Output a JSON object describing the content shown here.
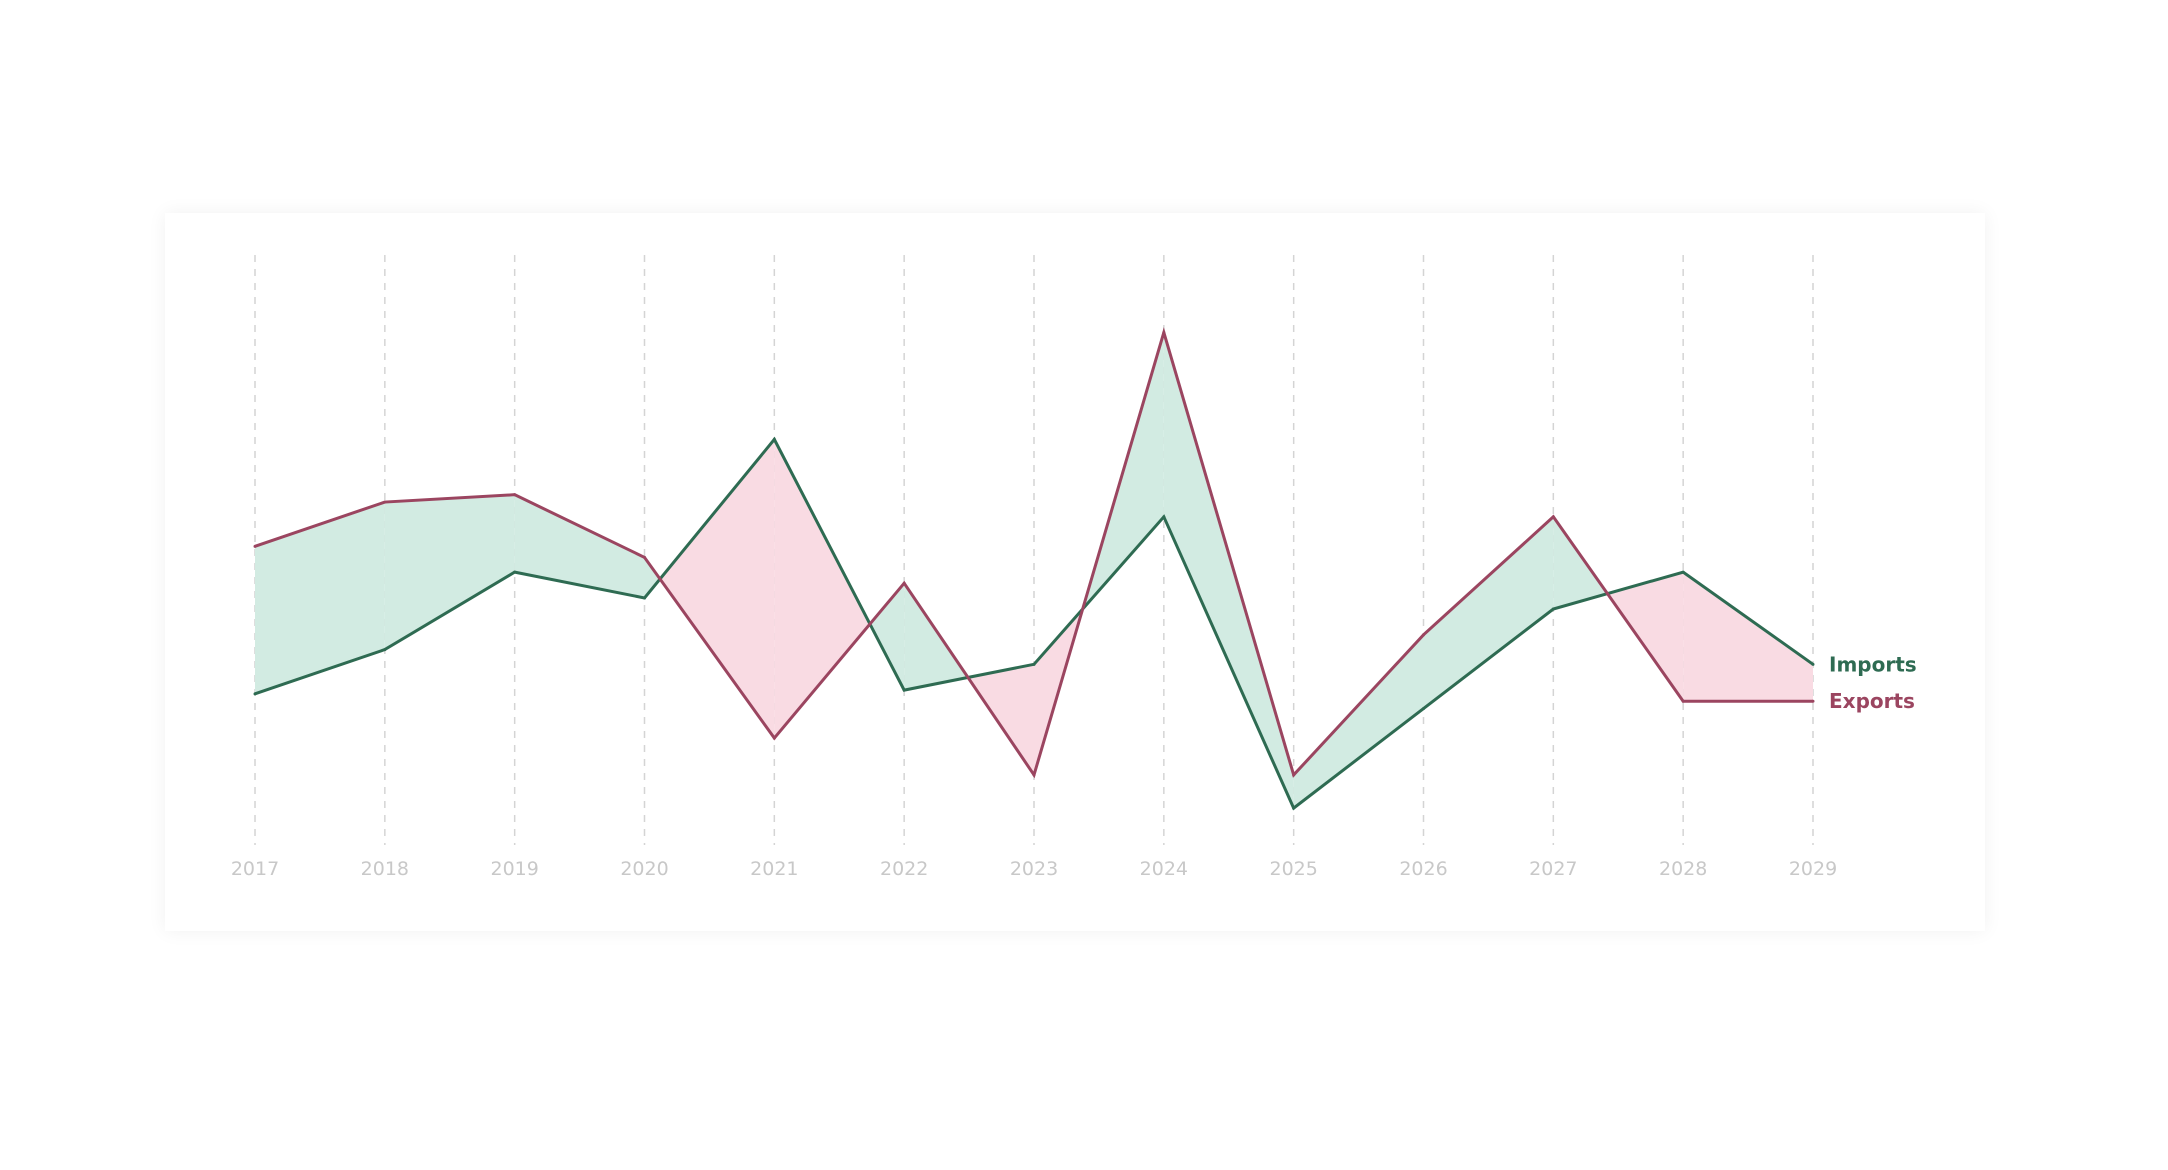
{
  "chart_data": {
    "type": "line",
    "x": [
      "2017",
      "2018",
      "2019",
      "2020",
      "2021",
      "2022",
      "2023",
      "2024",
      "2025",
      "2026",
      "2027",
      "2028",
      "2029"
    ],
    "series": [
      {
        "name": "Imports",
        "color": "#2e6b52",
        "values": [
          21,
          33,
          54,
          47,
          90,
          22,
          29,
          69,
          -10,
          17,
          44,
          54,
          29
        ]
      },
      {
        "name": "Exports",
        "color": "#9b4560",
        "values": [
          61,
          73,
          75,
          58,
          9,
          51,
          -1,
          119,
          -1,
          37,
          69,
          19,
          19
        ]
      }
    ],
    "fill_colors": {
      "imports_above": "#f9dbe3",
      "exports_above": "#d2ebe2"
    },
    "ylim": [
      -20,
      140
    ],
    "grid": "vertical dashed",
    "legend": "inline labels at line ends (right)"
  }
}
